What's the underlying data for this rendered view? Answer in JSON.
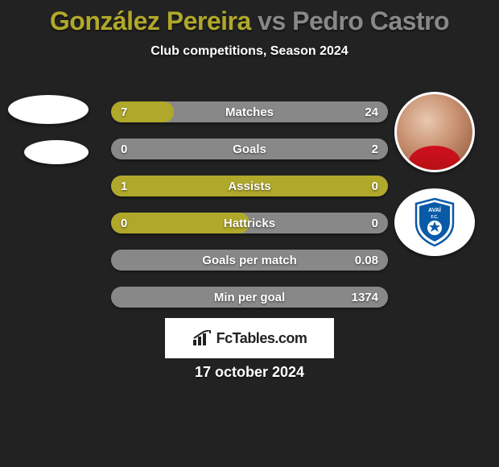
{
  "header": {
    "title_prefix": "González Pereira",
    "title_vs": " vs ",
    "title_suffix": "Pedro Castro",
    "title_color_left": "#b0a82a",
    "title_color_right": "#888888",
    "subtitle": "Club competitions, Season 2024"
  },
  "colors": {
    "left_fill": "#b0a82a",
    "right_fill": "#888888",
    "bar_bg": "#888888",
    "background": "#222222"
  },
  "stats": [
    {
      "label": "Matches",
      "left_value": "7",
      "right_value": "24",
      "left_pct": 22.6,
      "right_pct": 77.4
    },
    {
      "label": "Goals",
      "left_value": "0",
      "right_value": "2",
      "left_pct": 0,
      "right_pct": 100
    },
    {
      "label": "Assists",
      "left_value": "1",
      "right_value": "0",
      "left_pct": 100,
      "right_pct": 0
    },
    {
      "label": "Hattricks",
      "left_value": "0",
      "right_value": "0",
      "left_pct": 50,
      "right_pct": 50
    },
    {
      "label": "Goals per match",
      "left_value": "",
      "right_value": "0.08",
      "left_pct": 0,
      "right_pct": 100
    },
    {
      "label": "Min per goal",
      "left_value": "",
      "right_value": "1374",
      "left_pct": 0,
      "right_pct": 100
    }
  ],
  "branding": {
    "label": "FcTables.com"
  },
  "footer": {
    "date": "17 october 2024"
  },
  "club_badge": {
    "text": "AVAÍ F.C.",
    "primary": "#0a5aa8",
    "secondary": "#ffffff"
  }
}
